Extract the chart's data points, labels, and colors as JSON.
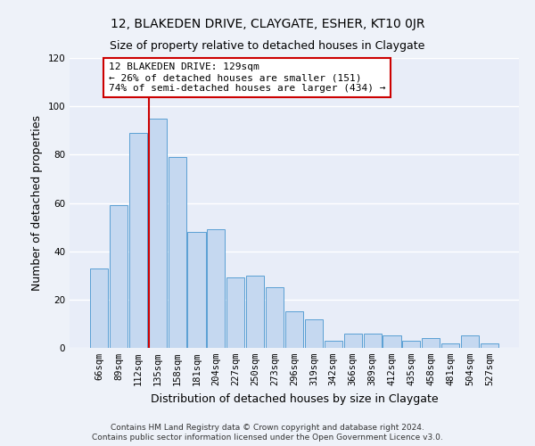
{
  "title": "12, BLAKEDEN DRIVE, CLAYGATE, ESHER, KT10 0JR",
  "subtitle": "Size of property relative to detached houses in Claygate",
  "xlabel": "Distribution of detached houses by size in Claygate",
  "ylabel": "Number of detached properties",
  "bar_labels": [
    "66sqm",
    "89sqm",
    "112sqm",
    "135sqm",
    "158sqm",
    "181sqm",
    "204sqm",
    "227sqm",
    "250sqm",
    "273sqm",
    "296sqm",
    "319sqm",
    "342sqm",
    "366sqm",
    "389sqm",
    "412sqm",
    "435sqm",
    "458sqm",
    "481sqm",
    "504sqm",
    "527sqm"
  ],
  "bar_values": [
    33,
    59,
    89,
    95,
    79,
    48,
    49,
    29,
    30,
    25,
    15,
    12,
    3,
    6,
    6,
    5,
    3,
    4,
    2,
    5,
    2
  ],
  "bar_color": "#c5d8f0",
  "bar_edge_color": "#5a9fd4",
  "ylim": [
    0,
    120
  ],
  "yticks": [
    0,
    20,
    40,
    60,
    80,
    100,
    120
  ],
  "vline_index": 3,
  "vline_color": "#cc0000",
  "annotation_text": "12 BLAKEDEN DRIVE: 129sqm\n← 26% of detached houses are smaller (151)\n74% of semi-detached houses are larger (434) →",
  "annotation_box_color": "#ffffff",
  "annotation_box_edge": "#cc0000",
  "footer1": "Contains HM Land Registry data © Crown copyright and database right 2024.",
  "footer2": "Contains public sector information licensed under the Open Government Licence v3.0.",
  "bg_color": "#eef2f9",
  "plot_bg_color": "#e8edf8",
  "grid_color": "#ffffff",
  "title_fontsize": 10,
  "subtitle_fontsize": 9,
  "axis_label_fontsize": 9,
  "tick_fontsize": 7.5,
  "annotation_fontsize": 8,
  "footer_fontsize": 6.5
}
